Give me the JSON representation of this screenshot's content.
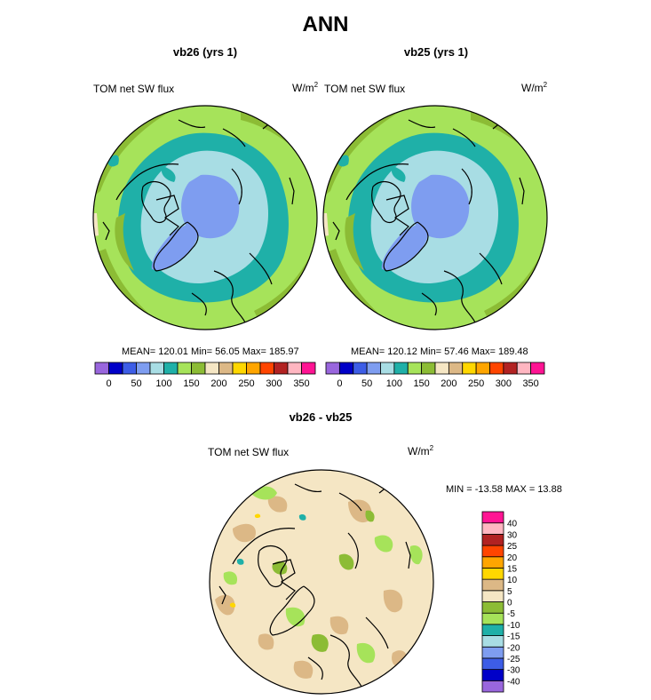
{
  "main_title": "ANN",
  "colors": {
    "c_purple": "#9966dd",
    "c_navy": "#0000c8",
    "c_blue": "#3d5de6",
    "c_cornflower": "#7e9df0",
    "c_paleblue": "#a8dde4",
    "c_teal": "#1fb0a8",
    "c_lightgreen": "#a6e35a",
    "c_olive": "#8cbc35",
    "c_cream": "#f5e6c4",
    "c_tan": "#dcb886",
    "c_yellow": "#ffd700",
    "c_orange": "#ffa500",
    "c_redorange": "#ff4500",
    "c_firebrick": "#b22222",
    "c_pink": "#ffb6c1",
    "c_magenta": "#ff1493"
  },
  "panels": {
    "left": {
      "title": "vb26 (yrs 1)",
      "variable": "TOM net SW flux",
      "units": "W/m",
      "units_sup": "2",
      "stats": "MEAN= 120.01  Min=  56.05  Max= 185.97"
    },
    "right": {
      "title": "vb25 (yrs 1)",
      "variable": "TOM net SW flux",
      "units": "W/m",
      "units_sup": "2",
      "stats": "MEAN= 120.12  Min=  57.46  Max= 189.48"
    },
    "diff": {
      "title": "vb26 - vb25",
      "variable": "TOM net SW flux",
      "units": "W/m",
      "units_sup": "2",
      "stats": "MIN = -13.58 MAX =  13.88"
    }
  },
  "chart_data": [
    {
      "type": "heatmap",
      "projection": "north polar stereographic",
      "title": "vb26 (yrs 1)",
      "variable": "TOM net SW flux",
      "units": "W/m2",
      "mean": 120.01,
      "min": 56.05,
      "max": 185.97,
      "colorbar": {
        "orientation": "horizontal",
        "levels": [
          0,
          25,
          50,
          75,
          100,
          125,
          150,
          175,
          200,
          225,
          250,
          275,
          300,
          325,
          350
        ],
        "tick_labels": [
          "0",
          "50",
          "100",
          "150",
          "200",
          "250",
          "300",
          "350"
        ],
        "colors": [
          "#9966dd",
          "#0000c8",
          "#3d5de6",
          "#7e9df0",
          "#a8dde4",
          "#1fb0a8",
          "#a6e35a",
          "#8cbc35",
          "#f5e6c4",
          "#dcb886",
          "#ffd700",
          "#ffa500",
          "#ff4500",
          "#b22222",
          "#ffb6c1",
          "#ff1493"
        ]
      }
    },
    {
      "type": "heatmap",
      "projection": "north polar stereographic",
      "title": "vb25 (yrs 1)",
      "variable": "TOM net SW flux",
      "units": "W/m2",
      "mean": 120.12,
      "min": 57.46,
      "max": 189.48,
      "colorbar": {
        "orientation": "horizontal",
        "levels": [
          0,
          25,
          50,
          75,
          100,
          125,
          150,
          175,
          200,
          225,
          250,
          275,
          300,
          325,
          350
        ],
        "tick_labels": [
          "0",
          "50",
          "100",
          "150",
          "200",
          "250",
          "300",
          "350"
        ],
        "colors": [
          "#9966dd",
          "#0000c8",
          "#3d5de6",
          "#7e9df0",
          "#a8dde4",
          "#1fb0a8",
          "#a6e35a",
          "#8cbc35",
          "#f5e6c4",
          "#dcb886",
          "#ffd700",
          "#ffa500",
          "#ff4500",
          "#b22222",
          "#ffb6c1",
          "#ff1493"
        ]
      }
    },
    {
      "type": "heatmap",
      "projection": "north polar stereographic",
      "title": "vb26 - vb25",
      "variable": "TOM net SW flux",
      "units": "W/m2",
      "min": -13.58,
      "max": 13.88,
      "colorbar": {
        "orientation": "vertical",
        "levels": [
          -40,
          -30,
          -25,
          -20,
          -15,
          -10,
          -5,
          0,
          5,
          10,
          15,
          20,
          25,
          30,
          40
        ],
        "tick_labels": [
          "-40",
          "-30",
          "-25",
          "-20",
          "-15",
          "-10",
          "-5",
          "0",
          "5",
          "10",
          "15",
          "20",
          "25",
          "30",
          "40"
        ],
        "colors": [
          "#9966dd",
          "#0000c8",
          "#3d5de6",
          "#7e9df0",
          "#a8dde4",
          "#1fb0a8",
          "#a6e35a",
          "#8cbc35",
          "#f5e6c4",
          "#dcb886",
          "#ffd700",
          "#ffa500",
          "#ff4500",
          "#b22222",
          "#ffb6c1",
          "#ff1493"
        ]
      }
    }
  ]
}
